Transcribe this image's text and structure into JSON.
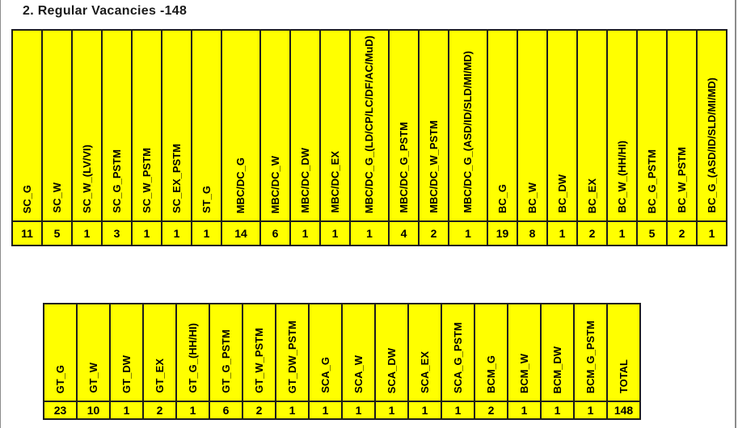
{
  "title": "2. Regular Vacancies -148",
  "colors": {
    "cell_bg": "#ffff00",
    "grid_border": "#1d1d1d",
    "text": "#000000",
    "page_edge": "#8c8c8c"
  },
  "vacancies_table": {
    "columns": [
      {
        "label": "SC_G",
        "value": "11"
      },
      {
        "label": "SC_W",
        "value": "5"
      },
      {
        "label": "SC_W_(LV/VI)",
        "value": "1"
      },
      {
        "label": "SC_G_PSTM",
        "value": "3"
      },
      {
        "label": "SC_W_PSTM",
        "value": "1"
      },
      {
        "label": "SC_EX_PSTM",
        "value": "1"
      },
      {
        "label": "ST_G",
        "value": "1"
      },
      {
        "label": "MBC/DC_G",
        "value": "14",
        "wide": true
      },
      {
        "label": "MBC/DC_W",
        "value": "6"
      },
      {
        "label": "MBC/DC_DW",
        "value": "1"
      },
      {
        "label": "MBC/DC_EX",
        "value": "1"
      },
      {
        "label": "MBC/DC_G_(LD/CP/LC/DF/AC/MuD)",
        "value": "1",
        "wide": true
      },
      {
        "label": "MBC/DC_G_PSTM",
        "value": "4"
      },
      {
        "label": "MBC/DC_W_PSTM",
        "value": "2"
      },
      {
        "label": "MBC/DC_G_(ASD/ID/SLD/MI/MD)",
        "value": "1",
        "wide": true
      },
      {
        "label": "BC_G",
        "value": "19"
      },
      {
        "label": "BC_W",
        "value": "8"
      },
      {
        "label": "BC_DW",
        "value": "1"
      },
      {
        "label": "BC_EX",
        "value": "2"
      },
      {
        "label": "BC_W_(HH/HI)",
        "value": "1"
      },
      {
        "label": "BC_G_PSTM",
        "value": "5"
      },
      {
        "label": "BC_W_PSTM",
        "value": "2"
      },
      {
        "label": "BC_G_(ASD/ID/SLD/MI/MD)",
        "value": "1"
      }
    ]
  },
  "totals_table": {
    "columns": [
      {
        "label": "GT_G",
        "value": "23"
      },
      {
        "label": "GT_W",
        "value": "10"
      },
      {
        "label": "GT_DW",
        "value": "1"
      },
      {
        "label": "GT_EX",
        "value": "2"
      },
      {
        "label": "GT_G_(HH/HI)",
        "value": "1"
      },
      {
        "label": "GT_G_PSTM",
        "value": "6"
      },
      {
        "label": "GT_W_PSTM",
        "value": "2"
      },
      {
        "label": "GT_DW_PSTM",
        "value": "1"
      },
      {
        "label": "SCA_G",
        "value": "1"
      },
      {
        "label": "SCA_W",
        "value": "1"
      },
      {
        "label": "SCA_DW",
        "value": "1"
      },
      {
        "label": "SCA_EX",
        "value": "1"
      },
      {
        "label": "SCA_G_PSTM",
        "value": "1"
      },
      {
        "label": "BCM_G",
        "value": "2"
      },
      {
        "label": "BCM_W",
        "value": "1"
      },
      {
        "label": "BCM_DW",
        "value": "1"
      },
      {
        "label": "BCM_G_PSTM",
        "value": "1"
      },
      {
        "label": "TOTAL",
        "value": "148"
      }
    ]
  }
}
